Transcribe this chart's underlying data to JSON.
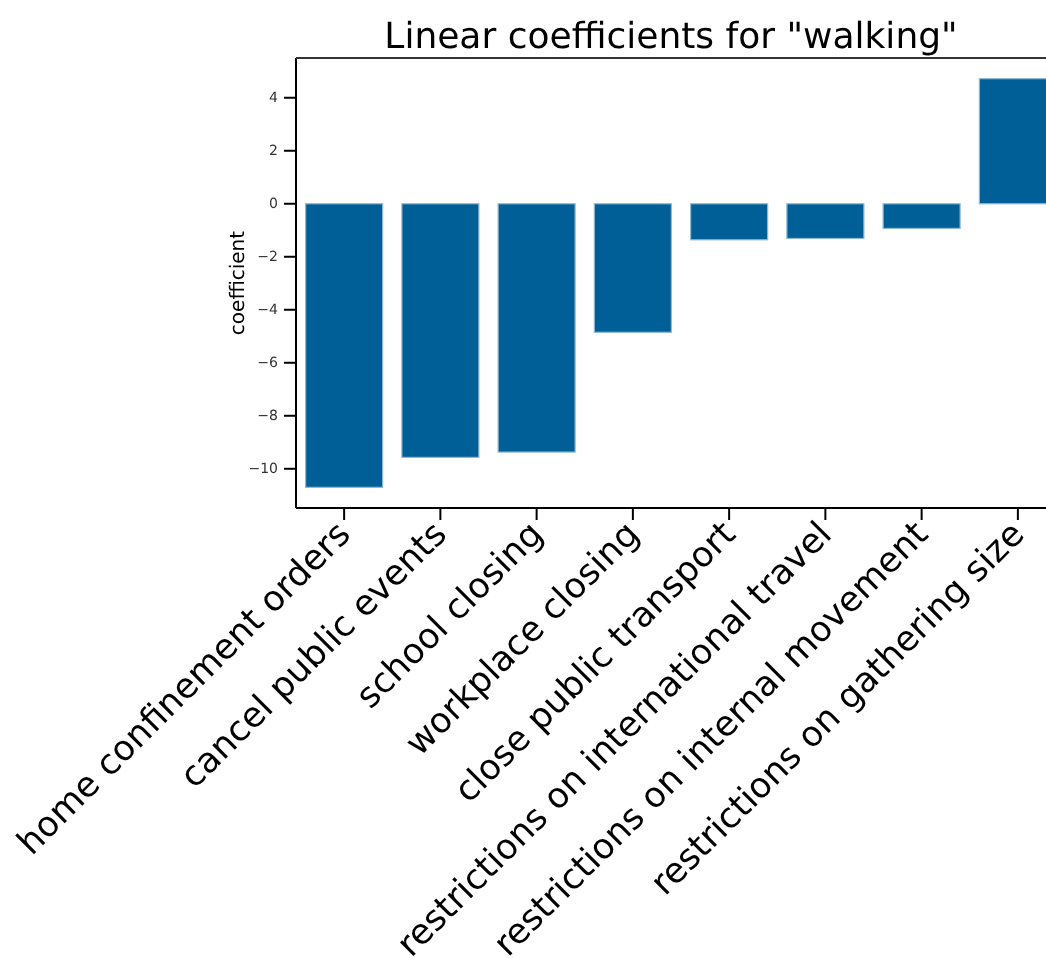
{
  "chart_data": {
    "type": "bar",
    "title": "Linear coefficients for \"walking\"",
    "ylabel": "coefficient",
    "categories": [
      "home confinement orders",
      "cancel public events",
      "school closing",
      "workplace closing",
      "close public transport",
      "restrictions on international travel",
      "restrictions on internal movement",
      "restrictions on gathering size"
    ],
    "values": [
      -10.7,
      -9.57,
      -9.37,
      -4.85,
      -1.36,
      -1.31,
      -0.93,
      4.72
    ],
    "color": "#005f96",
    "ylim": [
      -11.48,
      5.5
    ],
    "yticks": [
      {
        "value": -10,
        "label": "−10"
      },
      {
        "value": -8,
        "label": "−8"
      },
      {
        "value": -6,
        "label": "−6"
      },
      {
        "value": -4,
        "label": "−4"
      },
      {
        "value": -2,
        "label": "−2"
      },
      0,
      2,
      4
    ],
    "grid": false
  }
}
